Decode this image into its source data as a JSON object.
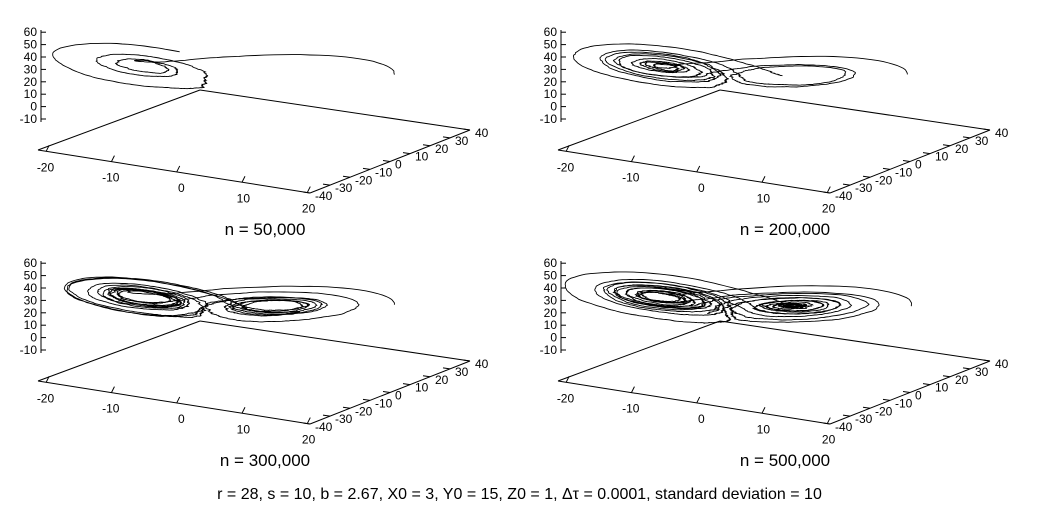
{
  "chart_data": [
    {
      "type": "scatter3d-trajectory",
      "title": "n = 50,000",
      "n": 50000,
      "x_ticks": [
        "-20",
        "-10",
        "0",
        "10",
        "20"
      ],
      "y_ticks": [
        "-40",
        "-30",
        "-20",
        "-10",
        "0",
        "10",
        "20",
        "30",
        "40"
      ],
      "z_ticks": [
        "-10",
        "0",
        "10",
        "20",
        "30",
        "40",
        "50",
        "60"
      ],
      "xlim": [
        -25,
        25
      ],
      "ylim": [
        -40,
        40
      ],
      "zlim": [
        -10,
        60
      ]
    },
    {
      "type": "scatter3d-trajectory",
      "title": "n = 200,000",
      "n": 200000,
      "x_ticks": [
        "-20",
        "-10",
        "0",
        "10",
        "20"
      ],
      "y_ticks": [
        "-40",
        "-30",
        "-20",
        "-10",
        "0",
        "10",
        "20",
        "30",
        "40"
      ],
      "z_ticks": [
        "-10",
        "0",
        "10",
        "20",
        "30",
        "40",
        "50",
        "60"
      ],
      "xlim": [
        -25,
        25
      ],
      "ylim": [
        -40,
        40
      ],
      "zlim": [
        -10,
        60
      ]
    },
    {
      "type": "scatter3d-trajectory",
      "title": "n = 300,000",
      "n": 300000,
      "x_ticks": [
        "-20",
        "-10",
        "0",
        "10",
        "20"
      ],
      "y_ticks": [
        "-40",
        "-30",
        "-20",
        "-10",
        "0",
        "10",
        "20",
        "30",
        "40"
      ],
      "z_ticks": [
        "-10",
        "0",
        "10",
        "20",
        "30",
        "40",
        "50",
        "60"
      ],
      "xlim": [
        -25,
        25
      ],
      "ylim": [
        -40,
        40
      ],
      "zlim": [
        -10,
        60
      ]
    },
    {
      "type": "scatter3d-trajectory",
      "title": "n = 500,000",
      "n": 500000,
      "x_ticks": [
        "-20",
        "-10",
        "0",
        "10",
        "20"
      ],
      "y_ticks": [
        "-40",
        "-30",
        "-20",
        "-10",
        "0",
        "10",
        "20",
        "30",
        "40"
      ],
      "z_ticks": [
        "-10",
        "0",
        "10",
        "20",
        "30",
        "40",
        "50",
        "60"
      ],
      "xlim": [
        -25,
        25
      ],
      "ylim": [
        -40,
        40
      ],
      "zlim": [
        -10,
        60
      ]
    }
  ],
  "caption": "r = 28, s = 10, b = 2.67, X0 = 3, Y0 = 15, Z0 = 1, Δτ = 0.0001, standard deviation = 10",
  "line_color": "#000000"
}
